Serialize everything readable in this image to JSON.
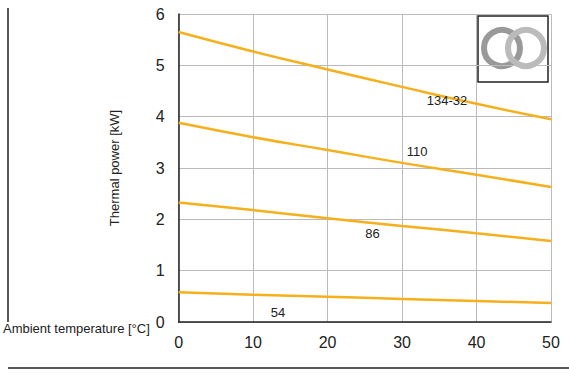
{
  "chart_data": {
    "type": "line",
    "xlabel": "Ambient temperature [°C]",
    "ylabel": "Thermal power [kW]",
    "x": [
      0,
      10,
      20,
      30,
      40,
      50
    ],
    "series": [
      {
        "name": "134-32",
        "color": "#f5b01c",
        "values": [
          5.65,
          5.27,
          4.92,
          4.58,
          4.25,
          3.95
        ]
      },
      {
        "name": "110",
        "color": "#f5b01c",
        "values": [
          3.88,
          3.6,
          3.35,
          3.1,
          2.87,
          2.63
        ]
      },
      {
        "name": "86",
        "color": "#f5b01c",
        "values": [
          2.33,
          2.18,
          2.02,
          1.87,
          1.73,
          1.58
        ]
      },
      {
        "name": "54",
        "color": "#f5b01c",
        "values": [
          0.58,
          0.53,
          0.49,
          0.45,
          0.41,
          0.37
        ]
      }
    ],
    "xlim": [
      0,
      50
    ],
    "xticks": [
      0,
      10,
      20,
      30,
      40,
      50
    ],
    "ylim": [
      0,
      6
    ],
    "yticks": [
      0,
      1,
      2,
      3,
      4,
      5,
      6
    ],
    "grid": true
  }
}
